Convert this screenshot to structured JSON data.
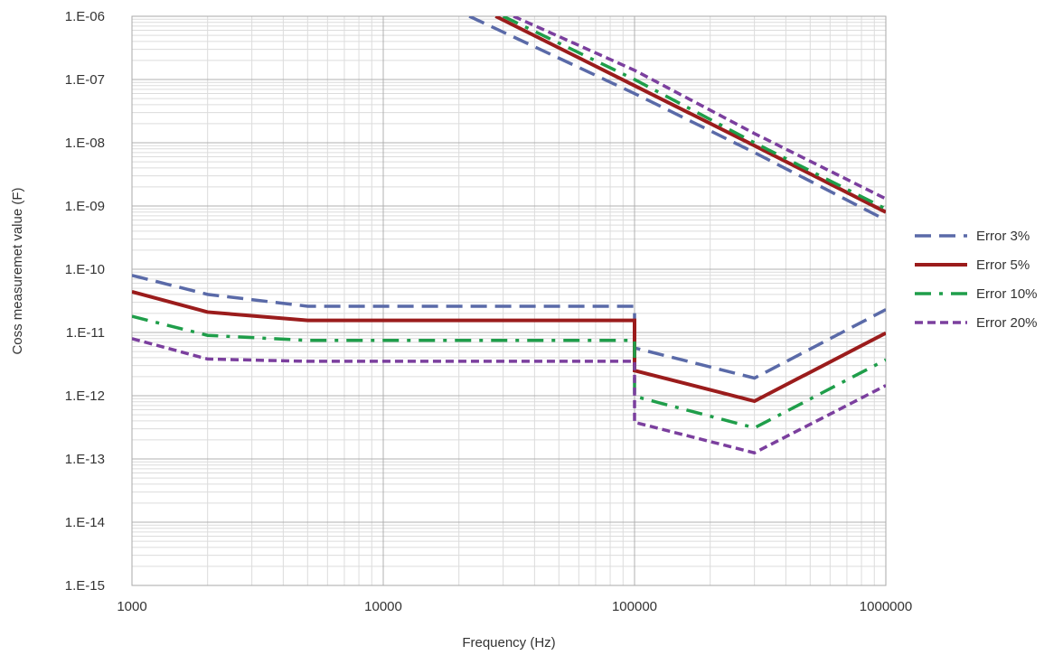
{
  "chart_data": {
    "type": "line",
    "title": "",
    "xlabel": "Frequency (Hz)",
    "ylabel": "Coss measuremet value (F)",
    "x_scale": "log",
    "y_scale": "log",
    "xlim": [
      1000,
      1000000
    ],
    "ylim": [
      1e-15,
      1e-06
    ],
    "x_ticks": [
      {
        "value": 1000,
        "label": "1000"
      },
      {
        "value": 10000,
        "label": "10000"
      },
      {
        "value": 100000,
        "label": "100000"
      },
      {
        "value": 1000000,
        "label": "1000000"
      }
    ],
    "y_ticks": [
      {
        "value": 1e-06,
        "label": "1.E-06"
      },
      {
        "value": 1e-07,
        "label": "1.E-07"
      },
      {
        "value": 1e-08,
        "label": "1.E-08"
      },
      {
        "value": 1e-09,
        "label": "1.E-09"
      },
      {
        "value": 1e-10,
        "label": "1.E-10"
      },
      {
        "value": 1e-11,
        "label": "1.E-11"
      },
      {
        "value": 1e-12,
        "label": "1.E-12"
      },
      {
        "value": 1e-13,
        "label": "1.E-13"
      },
      {
        "value": 1e-14,
        "label": "1.E-14"
      },
      {
        "value": 1e-15,
        "label": "1.E-15"
      }
    ],
    "grid": true,
    "legend_position": "right",
    "series": [
      {
        "name": "Error 3%",
        "color": "#5a6aa8",
        "dash": "dashed",
        "segments": [
          {
            "points": [
              [
                1000,
                8e-11
              ],
              [
                2000,
                4e-11
              ],
              [
                5000,
                2.6e-11
              ],
              [
                100000,
                2.6e-11
              ],
              [
                100000,
                5.7e-12
              ],
              [
                300000,
                1.9e-12
              ],
              [
                1000000,
                2.3e-11
              ]
            ]
          },
          {
            "points": [
              [
                22000,
                1e-06
              ],
              [
                100000,
                6e-08
              ],
              [
                300000,
                7e-09
              ],
              [
                1000000,
                6e-10
              ]
            ]
          }
        ]
      },
      {
        "name": "Error 5%",
        "color": "#9b1c1c",
        "dash": "solid",
        "segments": [
          {
            "points": [
              [
                1000,
                4.4e-11
              ],
              [
                2000,
                2.1e-11
              ],
              [
                5000,
                1.55e-11
              ],
              [
                100000,
                1.55e-11
              ],
              [
                100000,
                2.5e-12
              ],
              [
                300000,
                8.2e-13
              ],
              [
                1000000,
                9.8e-12
              ]
            ]
          },
          {
            "points": [
              [
                28000,
                1e-06
              ],
              [
                100000,
                8e-08
              ],
              [
                300000,
                9e-09
              ],
              [
                1000000,
                8e-10
              ]
            ]
          }
        ]
      },
      {
        "name": "Error 10%",
        "color": "#1f9e4a",
        "dash": "dashdot",
        "segments": [
          {
            "points": [
              [
                1000,
                1.8e-11
              ],
              [
                2000,
                9e-12
              ],
              [
                5000,
                7.5e-12
              ],
              [
                100000,
                7.5e-12
              ],
              [
                100000,
                9.8e-13
              ],
              [
                300000,
                3.1e-13
              ],
              [
                1000000,
                3.7e-12
              ]
            ]
          },
          {
            "points": [
              [
                30000,
                1e-06
              ],
              [
                100000,
                1e-07
              ],
              [
                300000,
                1e-08
              ],
              [
                1000000,
                9e-10
              ]
            ]
          }
        ]
      },
      {
        "name": "Error 20%",
        "color": "#7b3f9e",
        "dash": "shortdash",
        "segments": [
          {
            "points": [
              [
                1000,
                8e-12
              ],
              [
                2000,
                3.8e-12
              ],
              [
                5000,
                3.5e-12
              ],
              [
                100000,
                3.5e-12
              ],
              [
                100000,
                3.8e-13
              ],
              [
                300000,
                1.25e-13
              ],
              [
                1000000,
                1.45e-12
              ]
            ]
          },
          {
            "points": [
              [
                33000,
                1e-06
              ],
              [
                100000,
                1.4e-07
              ],
              [
                300000,
                1.4e-08
              ],
              [
                1000000,
                1.3e-09
              ]
            ]
          }
        ]
      }
    ]
  }
}
